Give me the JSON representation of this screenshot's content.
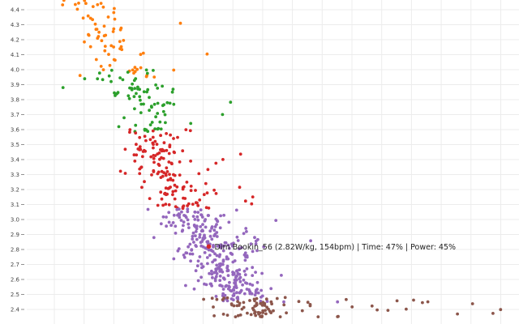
{
  "chart_data": {
    "type": "scatter",
    "title": "",
    "xlabel": "",
    "ylabel": "",
    "ylim": [
      2.35,
      4.48
    ],
    "y_ticks": [
      "2.4",
      "2.5",
      "2.6",
      "2.7",
      "2.8",
      "2.9",
      "3.0",
      "3.1",
      "3.2",
      "3.3",
      "3.4",
      "3.5",
      "3.6",
      "3.7",
      "3.8",
      "3.9",
      "4.0",
      "4.1",
      "4.2",
      "4.3",
      "4.4"
    ],
    "x_tick_labels_visible": false,
    "grid": true,
    "legend": "none",
    "groups": [
      {
        "color": "#ff7f0e",
        "y_range": [
          3.95,
          4.48
        ]
      },
      {
        "color": "#2ca02c",
        "y_range": [
          3.58,
          4.0
        ]
      },
      {
        "color": "#d62728",
        "y_range": [
          3.07,
          3.6
        ]
      },
      {
        "color": "#9467bd",
        "y_range": [
          2.45,
          3.07
        ]
      },
      {
        "color": "#8c564b",
        "y_range": [
          2.35,
          2.48
        ]
      }
    ],
    "highlight": {
      "color": "#d62728",
      "y": 2.82,
      "label": "Dim Bookin_56 (2.82W/kg, 154bpm) | Time: 47% | Power: 45%"
    }
  }
}
